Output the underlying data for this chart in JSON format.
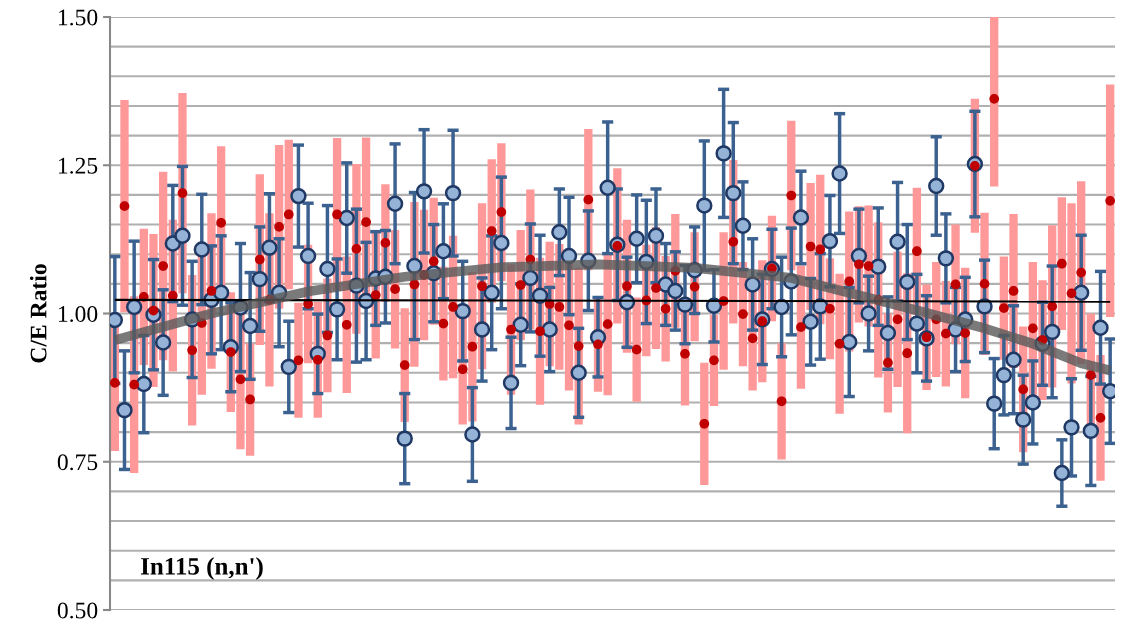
{
  "chart_data": {
    "type": "scatter",
    "ylabel": "C/E Ratio",
    "annotations": [
      "In115 (n,n')"
    ],
    "categories": [
      null,
      null,
      null,
      null,
      null,
      null,
      null,
      null,
      null,
      null,
      null,
      null,
      null,
      null,
      null,
      null,
      null,
      null,
      null,
      null,
      null,
      null,
      null,
      null,
      null,
      null,
      null,
      null,
      null,
      null,
      null,
      null,
      null,
      null,
      null,
      null,
      null,
      null,
      null,
      null,
      null,
      null,
      null,
      null,
      null,
      null,
      null,
      null,
      null,
      null,
      null,
      null,
      null,
      null,
      null,
      null,
      null,
      null,
      null,
      null,
      null,
      null,
      null,
      null,
      null,
      null,
      null,
      null,
      null,
      null,
      null,
      null,
      null,
      null,
      null,
      null,
      null,
      null,
      null,
      null,
      null,
      null,
      null,
      null,
      null,
      null,
      null,
      null,
      null,
      null,
      null,
      null,
      null,
      null,
      null,
      null,
      null,
      null,
      null,
      null,
      null,
      null,
      null,
      null
    ],
    "ylim": [
      0.5,
      1.5
    ],
    "yticks": [
      {
        "value": 0.5,
        "label": "0.50"
      },
      {
        "value": 0.55,
        "label": null
      },
      {
        "value": 0.6,
        "label": null
      },
      {
        "value": 0.65,
        "label": null
      },
      {
        "value": 0.7,
        "label": null
      },
      0.75,
      {
        "value": 0.8,
        "label": null
      },
      {
        "value": 0.85,
        "label": null
      },
      {
        "value": 0.9,
        "label": null
      },
      {
        "value": 0.95,
        "label": null
      },
      {
        "value": 1.0,
        "label": "1.00"
      },
      {
        "value": 1.05,
        "label": null
      },
      {
        "value": 1.1,
        "label": null
      },
      {
        "value": 1.15,
        "label": null
      },
      {
        "value": 1.2,
        "label": null
      },
      1.25,
      {
        "value": 1.3,
        "label": null
      },
      {
        "value": 1.35,
        "label": null
      },
      {
        "value": 1.4,
        "label": null
      },
      {
        "value": 1.45,
        "label": null
      },
      {
        "value": 1.5,
        "label": "1.50"
      }
    ],
    "grid": "y",
    "tick_labels": "y",
    "series": [
      {
        "marker": "circle",
        "color": "#c00000",
        "values": [
          0.883,
          1.181,
          0.88,
          1.028,
          1.005,
          1.08,
          1.03,
          1.203,
          0.938,
          0.984,
          1.038,
          1.153,
          0.935,
          0.889,
          0.855,
          1.091,
          1.023,
          1.146,
          1.167,
          0.921,
          1.016,
          0.922,
          0.963,
          1.167,
          0.981,
          1.109,
          1.154,
          1.031,
          1.119,
          1.041,
          0.913,
          1.049,
          1.065,
          1.088,
          0.983,
          1.011,
          0.906,
          0.944,
          1.046,
          1.139,
          1.171,
          0.973,
          1.048,
          1.091,
          0.97,
          1.016,
          1.011,
          0.98,
          0.945,
          1.192,
          0.948,
          0.982,
          1.114,
          1.046,
          0.939,
          1.022,
          1.043,
          1.008,
          1.072,
          0.932,
          1.045,
          0.814,
          0.921,
          1.021,
          1.121,
          0.999,
          0.958,
          0.987,
          1.076,
          0.852,
          1.199,
          0.977,
          1.113,
          1.108,
          1.008,
          0.949,
          1.054,
          1.083,
          1.08,
          1.023,
          0.917,
          0.99,
          0.933,
          1.105,
          0.96,
          0.99,
          0.966,
          1.049,
          0.967,
          1.249,
          1.05,
          1.362,
          1.009,
          1.038,
          0.872,
          0.975,
          0.955,
          1.012,
          1.084,
          1.034,
          1.069,
          0.896,
          0.824,
          1.19
        ],
        "errors": [
          0.115,
          0.179,
          0.149,
          0.115,
          0.129,
          0.159,
          0.128,
          0.169,
          0.127,
          0.121,
          0.131,
          0.129,
          0.101,
          0.118,
          0.095,
          0.144,
          0.146,
          0.138,
          0.126,
          0.097,
          0.1,
          0.098,
          0.096,
          0.129,
          0.115,
          0.143,
          0.143,
          0.107,
          0.099,
          0.1,
          0.096,
          0.139,
          0.11,
          0.107,
          0.096,
          0.12,
          0.093,
          0.126,
          0.14,
          0.121,
          0.116,
          0.11,
          0.093,
          0.118,
          0.124,
          0.105,
          0.106,
          0.11,
          0.132,
          0.119,
          0.08,
          0.12,
          0.131,
          0.112,
          0.088,
          0.094,
          0.103,
          0.089,
          0.096,
          0.087,
          0.092,
          0.103,
          0.077,
          0.116,
          0.138,
          0.088,
          0.088,
          0.103,
          0.089,
          0.098,
          0.126,
          0.104,
          0.107,
          0.126,
          0.085,
          0.118,
          0.118,
          0.098,
          0.102,
          0.131,
          0.084,
          0.114,
          0.135,
          0.107,
          0.089,
          0.097,
          0.089,
          0.101,
          0.11,
          0.113,
          0.12,
          [
            1.214,
            1.5
          ],
          0.087,
          0.13,
          0.106,
          0.112,
          0.101,
          0.137,
          0.112,
          0.152,
          0.154,
          0.104,
          0.106,
          0.196
        ]
      },
      {
        "marker": "circle",
        "color": "#95b3d7",
        "values": [
          0.989,
          0.837,
          1.011,
          0.881,
          0.998,
          0.951,
          1.118,
          1.131,
          0.99,
          1.108,
          1.023,
          1.035,
          0.943,
          1.01,
          0.979,
          1.058,
          1.111,
          1.035,
          0.91,
          1.198,
          1.097,
          0.932,
          1.075,
          1.007,
          1.161,
          1.047,
          1.021,
          1.059,
          1.062,
          1.185,
          0.789,
          1.08,
          1.206,
          1.068,
          1.105,
          1.203,
          1.004,
          0.796,
          0.973,
          1.035,
          1.119,
          0.883,
          0.981,
          1.06,
          1.03,
          0.973,
          1.137,
          1.097,
          0.9,
          1.089,
          0.96,
          1.212,
          1.116,
          1.019,
          1.126,
          1.087,
          1.131,
          1.049,
          1.038,
          1.015,
          1.073,
          1.182,
          1.013,
          1.27,
          1.203,
          1.148,
          1.049,
          0.99,
          1.075,
          1.011,
          1.054,
          1.162,
          0.986,
          1.012,
          1.122,
          1.236,
          0.952,
          1.097,
          1.0,
          1.079,
          0.967,
          1.121,
          1.053,
          0.983,
          0.958,
          1.215,
          1.093,
          0.973,
          0.99,
          1.252,
          1.012,
          0.848,
          0.896,
          0.922,
          0.821,
          0.85,
          0.949,
          0.969,
          0.731,
          0.808,
          1.035,
          0.802,
          0.976,
          0.869
        ],
        "errors": [
          0.107,
          0.1,
          0.111,
          0.082,
          0.093,
          0.089,
          0.098,
          0.117,
          0.098,
          0.093,
          0.091,
          0.096,
          0.075,
          0.108,
          0.09,
          0.088,
          0.091,
          0.091,
          0.077,
          0.086,
          0.089,
          0.067,
          0.107,
          0.085,
          0.093,
          0.129,
          0.099,
          0.079,
          0.078,
          0.101,
          0.076,
          0.124,
          0.104,
          0.082,
          0.08,
          0.106,
          0.084,
          0.079,
          0.087,
          0.096,
          0.111,
          0.077,
          0.069,
          0.091,
          0.102,
          0.071,
          0.073,
          0.099,
          0.075,
          0.084,
          0.067,
          0.111,
          0.094,
          0.076,
          0.074,
          0.104,
          0.079,
          0.069,
          0.066,
          0.066,
          0.073,
          0.109,
          0.061,
          0.108,
          0.119,
          0.074,
          0.077,
          0.076,
          0.067,
          0.084,
          0.09,
          0.078,
          0.073,
          0.089,
          0.077,
          0.101,
          0.092,
          0.079,
          0.063,
          0.099,
          0.061,
          0.1,
          0.097,
          0.083,
          0.072,
          0.083,
          0.075,
          0.071,
          0.071,
          0.089,
          0.078,
          0.076,
          0.067,
          0.091,
          0.075,
          0.07,
          0.07,
          0.111,
          0.056,
          0.082,
          0.097,
          0.092,
          0.095,
          0.088
        ]
      },
      {
        "type": "line",
        "color": "#000000",
        "values": [
          1.023,
          null,
          null,
          null,
          null,
          null,
          null,
          null,
          null,
          null,
          null,
          null,
          null,
          null,
          null,
          null,
          null,
          null,
          null,
          null,
          null,
          null,
          null,
          null,
          null,
          null,
          null,
          null,
          null,
          null,
          null,
          null,
          null,
          null,
          null,
          null,
          null,
          null,
          null,
          null,
          null,
          null,
          null,
          null,
          null,
          null,
          null,
          null,
          null,
          null,
          null,
          null,
          null,
          null,
          null,
          null,
          null,
          null,
          null,
          null,
          null,
          null,
          null,
          null,
          null,
          null,
          null,
          null,
          null,
          null,
          null,
          null,
          null,
          null,
          null,
          null,
          null,
          null,
          null,
          null,
          null,
          null,
          null,
          null,
          null,
          null,
          null,
          null,
          null,
          null,
          null,
          null,
          null,
          null,
          null,
          null,
          null,
          null,
          null,
          null,
          null,
          null,
          null,
          1.02
        ]
      },
      {
        "type": "line",
        "color": "#595959",
        "values": [
          0.955,
          null,
          null,
          null,
          null,
          null,
          null,
          null,
          null,
          null,
          1.0,
          null,
          null,
          null,
          null,
          null,
          null,
          null,
          null,
          null,
          1.037,
          null,
          null,
          null,
          null,
          null,
          null,
          null,
          null,
          null,
          1.062,
          null,
          null,
          null,
          null,
          null,
          null,
          null,
          null,
          null,
          1.078,
          null,
          null,
          null,
          null,
          null,
          null,
          null,
          null,
          null,
          1.083,
          null,
          null,
          null,
          null,
          null,
          null,
          null,
          null,
          null,
          1.077,
          null,
          null,
          null,
          null,
          null,
          null,
          null,
          null,
          null,
          1.06,
          null,
          null,
          null,
          null,
          null,
          null,
          null,
          null,
          null,
          1.018,
          null,
          null,
          null,
          null,
          null,
          null,
          null,
          null,
          null,
          0.975,
          null,
          null,
          null,
          null,
          0.949,
          null,
          null,
          null,
          null,
          0.916,
          null,
          null,
          0.904
        ]
      }
    ]
  }
}
